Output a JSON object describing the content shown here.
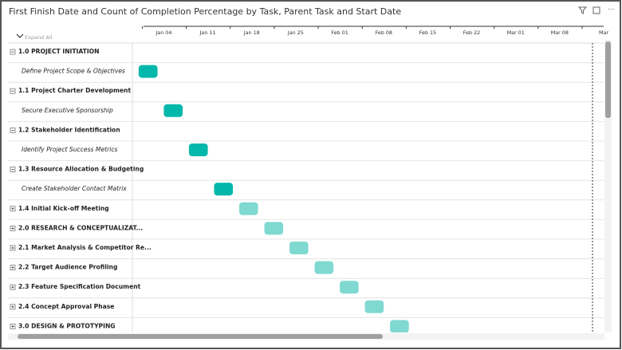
{
  "chart_data": {
    "type": "gantt",
    "title": "First Finish Date and Count of Completion Percentage by Task, Parent Task and Start Date",
    "expand_label": "Expand All",
    "categories": [
      "1.0 PROJECT INITIATION",
      "Define Project Scope & Objectives",
      "1.1 Project Charter Development",
      "Secure Executive Sponsorship",
      "1.2 Stakeholder Identification",
      "Identify Project Success Metrics",
      "1.3 Resource Allocation & Budgeting",
      "Create Stakeholder Contact Matrix",
      "1.4 Initial Kick-off Meeting",
      "2.0 RESEARCH & CONCEPTUALIZAT...",
      "2.1 Market Analysis & Competitor Re...",
      "2.2 Target Audience Profiling",
      "2.3 Feature Specification Document",
      "2.4 Concept Approval Phase",
      "3.0 DESIGN & PROTOTYPING"
    ],
    "row_kind": [
      "expanded",
      "task",
      "expanded",
      "task",
      "expanded",
      "task",
      "expanded",
      "task",
      "collapsed",
      "collapsed",
      "collapsed",
      "collapsed",
      "collapsed",
      "collapsed",
      "collapsed"
    ],
    "start": [
      null,
      0,
      null,
      4,
      null,
      8,
      null,
      12,
      16,
      20,
      24,
      28,
      32,
      36,
      40
    ],
    "end": [
      null,
      3,
      null,
      7,
      null,
      11,
      null,
      15,
      19,
      23,
      27,
      31,
      35,
      39,
      43
    ],
    "colors": [
      null,
      "#01b8aa",
      null,
      "#01b8aa",
      null,
      "#01b8aa",
      null,
      "#01b8aa",
      "#80d9d0",
      "#80d9d0",
      "#80d9d0",
      "#80d9d0",
      "#80d9d0",
      "#80d9d0",
      "#80d9d0"
    ],
    "xlim": [
      -1,
      74
    ],
    "xticks": [
      {
        "value": 4,
        "label": "Jan 04"
      },
      {
        "value": 11,
        "label": "Jan 11"
      },
      {
        "value": 18,
        "label": "Jan 18"
      },
      {
        "value": 25,
        "label": "Jan 25"
      },
      {
        "value": 32,
        "label": "Feb 01"
      },
      {
        "value": 39,
        "label": "Feb 08"
      },
      {
        "value": 46,
        "label": "Feb 15"
      },
      {
        "value": 53,
        "label": "Feb 22"
      },
      {
        "value": 60,
        "label": "Mar 01"
      },
      {
        "value": 67,
        "label": "Mar 08"
      },
      {
        "value": 74,
        "label": "Mar"
      }
    ]
  }
}
